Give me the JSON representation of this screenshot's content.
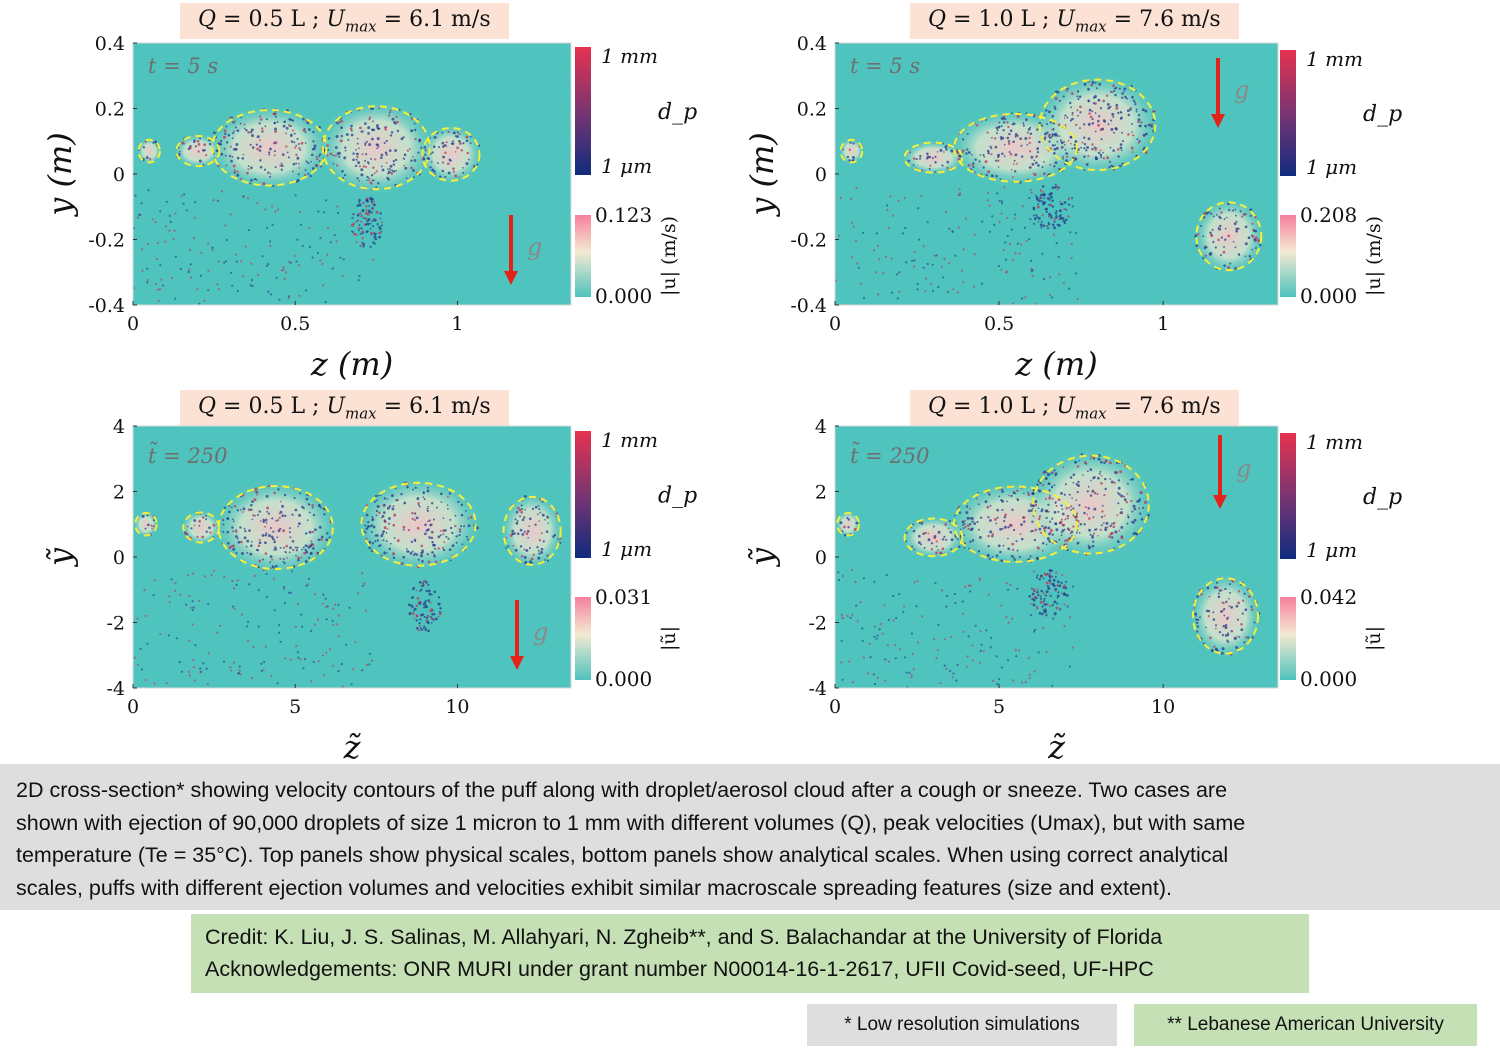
{
  "chart_data": [
    {
      "type": "heatmap",
      "id": "p1",
      "case_label": {
        "q": "0.5 L",
        "umax": "6.1 m/s"
      },
      "time_label": "t = 5 s",
      "xlabel": "z (m)",
      "ylabel": "y (m)",
      "xlim": [
        0,
        1.35
      ],
      "ylim": [
        -0.4,
        0.4
      ],
      "xticks": [
        "0",
        "0.5",
        "1"
      ],
      "xtick_values": [
        0,
        0.5,
        1
      ],
      "yticks": [
        "0.4",
        "0.2",
        "0",
        "-0.2",
        "-0.4"
      ],
      "ytick_values": [
        0.4,
        0.2,
        0,
        -0.2,
        -0.4
      ],
      "dp_colorbar": {
        "label": "d_p",
        "max": "1 mm",
        "min": "1 μm"
      },
      "vel_colorbar": {
        "label": "|u| (m/s)",
        "max": "0.123",
        "min": "0.000"
      },
      "gravity_label": "g",
      "puff_blobs": [
        [
          0.42,
          0.08,
          0.16,
          0.1
        ],
        [
          0.75,
          0.08,
          0.15,
          0.11
        ],
        [
          0.98,
          0.06,
          0.08,
          0.07
        ],
        [
          0.2,
          0.07,
          0.06,
          0.04
        ],
        [
          0.05,
          0.07,
          0.03,
          0.03
        ]
      ],
      "droplet_lobe": [
        0.72,
        -0.15,
        0.05,
        0.08
      ]
    },
    {
      "type": "heatmap",
      "id": "p2",
      "case_label": {
        "q": "1.0 L",
        "umax": "7.6 m/s"
      },
      "time_label": "t = 5 s",
      "xlabel": "z (m)",
      "ylabel": "y (m)",
      "xlim": [
        0,
        1.35
      ],
      "ylim": [
        -0.4,
        0.4
      ],
      "xticks": [
        "0",
        "0.5",
        "1"
      ],
      "xtick_values": [
        0,
        0.5,
        1
      ],
      "yticks": [
        "0.4",
        "0.2",
        "0",
        "-0.2",
        "-0.4"
      ],
      "ytick_values": [
        0.4,
        0.2,
        0,
        -0.2,
        -0.4
      ],
      "dp_colorbar": {
        "label": "d_p",
        "max": "1 mm",
        "min": "1 μm"
      },
      "vel_colorbar": {
        "label": "|u| (m/s)",
        "max": "0.208",
        "min": "0.000"
      },
      "gravity_label": "g",
      "puff_blobs": [
        [
          0.55,
          0.08,
          0.17,
          0.09
        ],
        [
          0.8,
          0.15,
          0.16,
          0.12
        ],
        [
          1.2,
          -0.19,
          0.09,
          0.09
        ],
        [
          0.3,
          0.05,
          0.08,
          0.04
        ],
        [
          0.05,
          0.07,
          0.03,
          0.03
        ]
      ],
      "droplet_lobe": [
        0.66,
        -0.1,
        0.06,
        0.07
      ]
    },
    {
      "type": "heatmap",
      "id": "p3",
      "case_label": {
        "q": "0.5 L",
        "umax": "6.1 m/s"
      },
      "time_label": "t̃ = 250",
      "xlabel": "z̃",
      "ylabel": "ỹ",
      "xlim": [
        0,
        13.5
      ],
      "ylim": [
        -4,
        4
      ],
      "xticks": [
        "0",
        "5",
        "10"
      ],
      "xtick_values": [
        0,
        5,
        10
      ],
      "yticks": [
        "4",
        "2",
        "0",
        "-2",
        "-4"
      ],
      "ytick_values": [
        4,
        2,
        0,
        -2,
        -4
      ],
      "dp_colorbar": {
        "label": "d_p",
        "max": "1 mm",
        "min": "1 μm"
      },
      "vel_colorbar": {
        "label": "|ũ|",
        "max": "0.031",
        "min": "0.000"
      },
      "gravity_label": "g",
      "puff_blobs": [
        [
          4.4,
          0.9,
          1.6,
          1.1
        ],
        [
          8.8,
          1.0,
          1.6,
          1.1
        ],
        [
          12.3,
          0.8,
          0.8,
          0.9
        ],
        [
          2.1,
          0.9,
          0.5,
          0.4
        ],
        [
          0.4,
          1.0,
          0.3,
          0.3
        ]
      ],
      "droplet_lobe": [
        9.0,
        -1.5,
        0.5,
        0.8
      ]
    },
    {
      "type": "heatmap",
      "id": "p4",
      "case_label": {
        "q": "1.0 L",
        "umax": "7.6 m/s"
      },
      "time_label": "t̃ = 250",
      "xlabel": "z̃",
      "ylabel": "ỹ",
      "xlim": [
        0,
        13.5
      ],
      "ylim": [
        -4,
        4
      ],
      "xticks": [
        "0",
        "5",
        "10"
      ],
      "xtick_values": [
        0,
        5,
        10
      ],
      "yticks": [
        "4",
        "2",
        "0",
        "-2",
        "-4"
      ],
      "ytick_values": [
        4,
        2,
        0,
        -2,
        -4
      ],
      "dp_colorbar": {
        "label": "d_p",
        "max": "1 mm",
        "min": "1 μm"
      },
      "vel_colorbar": {
        "label": "|ũ|",
        "max": "0.042",
        "min": "0.000"
      },
      "gravity_label": "g",
      "puff_blobs": [
        [
          5.5,
          1.0,
          1.7,
          1.0
        ],
        [
          7.8,
          1.6,
          1.6,
          1.3
        ],
        [
          11.9,
          -1.8,
          0.9,
          1.0
        ],
        [
          3.0,
          0.6,
          0.8,
          0.5
        ],
        [
          0.4,
          1.0,
          0.3,
          0.3
        ]
      ],
      "droplet_lobe": [
        6.5,
        -1.1,
        0.6,
        0.7
      ]
    }
  ],
  "caption": {
    "lines": [
      "2D cross-section* showing velocity contours of the puff along with droplet/aerosol cloud after a cough or sneeze. Two cases are",
      "shown with ejection of 90,000 droplets of size 1 micron to 1 mm with different volumes (Q), peak velocities (Umax), but with same",
      "temperature (Te = 35°C). Top panels show physical scales, bottom panels show analytical scales. When using correct analytical",
      "scales, puffs with different ejection volumes and velocities exhibit similar macroscale spreading features (size and extent)."
    ]
  },
  "credit": {
    "line1": "Credit: K. Liu, J. S. Salinas, M. Allahyari, N. Zgheib**, and S. Balachandar at the University of Florida",
    "line2": "Acknowledgements: ONR MURI under grant number N00014-16-1-2617, UFII Covid-seed, UF-HPC"
  },
  "notes": {
    "low_res": "* Low resolution simulations",
    "lau": "** Lebanese American University"
  },
  "colors": {
    "background_field": "#4fc3bd",
    "puff_core": "#f3c7c9",
    "contour": "#f4ef3a",
    "droplet_small": "#253a8a",
    "droplet_large": "#c0325a",
    "gravity_arrow": "#e2231a"
  }
}
